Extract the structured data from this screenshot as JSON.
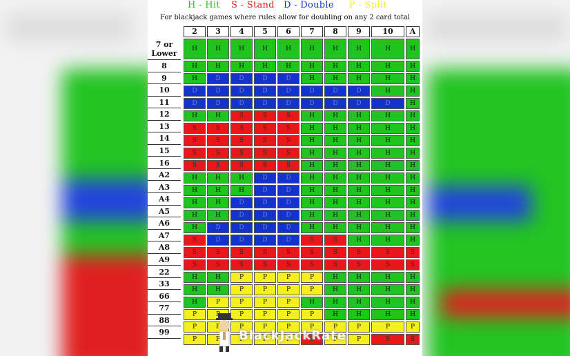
{
  "legend": [
    {
      "text": "H - Hit",
      "color": "#1fc41f"
    },
    {
      "text": "S - Stand",
      "color": "#e8171a"
    },
    {
      "text": "D - Double",
      "color": "#1432cc"
    },
    {
      "text": "P - Split",
      "color": "#f4f01c"
    }
  ],
  "subtitle": "For blackjack games where rules allow for doubling on any 2 card total",
  "dealer_cards": [
    "2",
    "3",
    "4",
    "5",
    "6",
    "7",
    "8",
    "9",
    "10",
    "A"
  ],
  "rows": [
    {
      "label": "7 or Lower",
      "cells": [
        "H",
        "H",
        "H",
        "H",
        "H",
        "H",
        "H",
        "H",
        "H",
        "H"
      ]
    },
    {
      "label": "8",
      "cells": [
        "H",
        "H",
        "H",
        "H",
        "H",
        "H",
        "H",
        "H",
        "H",
        "H"
      ]
    },
    {
      "label": "9",
      "cells": [
        "H",
        "D",
        "D",
        "D",
        "D",
        "H",
        "H",
        "H",
        "H",
        "H"
      ]
    },
    {
      "label": "10",
      "cells": [
        "D",
        "D",
        "D",
        "D",
        "D",
        "D",
        "D",
        "D",
        "H",
        "H"
      ]
    },
    {
      "label": "11",
      "cells": [
        "D",
        "D",
        "D",
        "D",
        "D",
        "D",
        "D",
        "D",
        "D",
        "H"
      ]
    },
    {
      "label": "12",
      "cells": [
        "H",
        "H",
        "S",
        "S",
        "S",
        "H",
        "H",
        "H",
        "H",
        "H"
      ]
    },
    {
      "label": "13",
      "cells": [
        "S",
        "S",
        "S",
        "S",
        "S",
        "H",
        "H",
        "H",
        "H",
        "H"
      ]
    },
    {
      "label": "14",
      "cells": [
        "S",
        "S",
        "S",
        "S",
        "S",
        "H",
        "H",
        "H",
        "H",
        "H"
      ]
    },
    {
      "label": "15",
      "cells": [
        "S",
        "S",
        "S",
        "S",
        "S",
        "H",
        "H",
        "H",
        "H",
        "H"
      ]
    },
    {
      "label": "16",
      "cells": [
        "S",
        "S",
        "S",
        "S",
        "S",
        "H",
        "H",
        "H",
        "H",
        "H"
      ]
    },
    {
      "label": "A2",
      "cells": [
        "H",
        "H",
        "H",
        "D",
        "D",
        "H",
        "H",
        "H",
        "H",
        "H"
      ]
    },
    {
      "label": "A3",
      "cells": [
        "H",
        "H",
        "H",
        "D",
        "D",
        "H",
        "H",
        "H",
        "H",
        "H"
      ]
    },
    {
      "label": "A4",
      "cells": [
        "H",
        "H",
        "D",
        "D",
        "D",
        "H",
        "H",
        "H",
        "H",
        "H"
      ]
    },
    {
      "label": "A5",
      "cells": [
        "H",
        "H",
        "D",
        "D",
        "D",
        "H",
        "H",
        "H",
        "H",
        "H"
      ]
    },
    {
      "label": "A6",
      "cells": [
        "H",
        "D",
        "D",
        "D",
        "D",
        "H",
        "H",
        "H",
        "H",
        "H"
      ]
    },
    {
      "label": "A7",
      "cells": [
        "S",
        "D",
        "D",
        "D",
        "D",
        "S",
        "S",
        "H",
        "H",
        "H"
      ]
    },
    {
      "label": "A8",
      "cells": [
        "S",
        "S",
        "S",
        "S",
        "S",
        "S",
        "S",
        "S",
        "S",
        "S"
      ]
    },
    {
      "label": "A9",
      "cells": [
        "S",
        "S",
        "S",
        "S",
        "S",
        "S",
        "S",
        "S",
        "S",
        "S"
      ]
    },
    {
      "label": "22",
      "cells": [
        "H",
        "H",
        "P",
        "P",
        "P",
        "P",
        "H",
        "H",
        "H",
        "H"
      ]
    },
    {
      "label": "33",
      "cells": [
        "H",
        "H",
        "P",
        "P",
        "P",
        "P",
        "H",
        "H",
        "H",
        "H"
      ]
    },
    {
      "label": "66",
      "cells": [
        "H",
        "P",
        "P",
        "P",
        "P",
        "H",
        "H",
        "H",
        "H",
        "H"
      ]
    },
    {
      "label": "77",
      "cells": [
        "P",
        "P",
        "P",
        "P",
        "P",
        "P",
        "H",
        "H",
        "H",
        "H"
      ]
    },
    {
      "label": "88",
      "cells": [
        "P",
        "P",
        "P",
        "P",
        "P",
        "P",
        "P",
        "P",
        "P",
        "P"
      ]
    },
    {
      "label": "99",
      "cells": [
        "P",
        "P",
        "P",
        "P",
        "P",
        "S",
        "P",
        "P",
        "S",
        "S"
      ]
    }
  ],
  "watermark": {
    "text": "BlackJackRate"
  },
  "colors": {
    "H": "#1fc41f",
    "S": "#e8171a",
    "D": "#1432cc",
    "P": "#f4f01c"
  }
}
